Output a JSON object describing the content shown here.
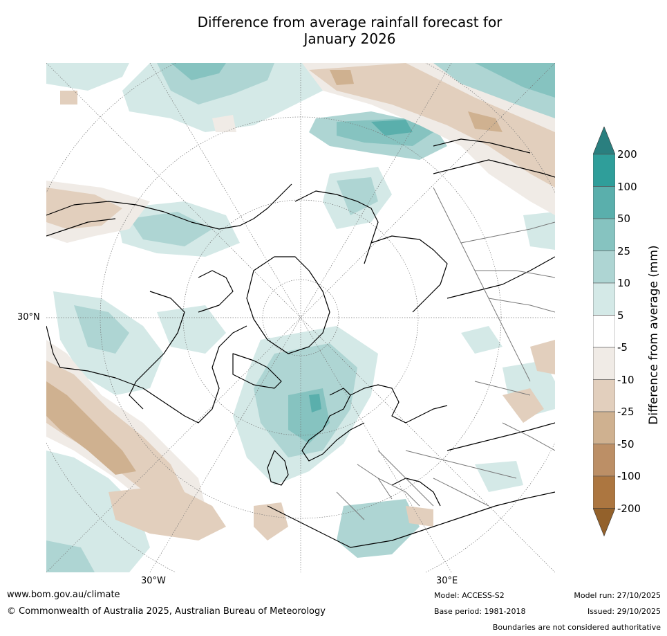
{
  "title_line1": "Difference from average rainfall forecast for",
  "title_line2": "January 2026",
  "axis": {
    "lat_30": "30°N",
    "lon_30w": "30°W",
    "lon_30e": "30°E"
  },
  "colorbar": {
    "title": "Difference from average (mm)",
    "ticks": [
      "200",
      "100",
      "50",
      "25",
      "10",
      "5",
      "-5",
      "-10",
      "-25",
      "-50",
      "-100",
      "-200"
    ],
    "colors": [
      "#2a7f7f",
      "#2f9e9a",
      "#5aafac",
      "#86c3c0",
      "#aed5d3",
      "#d4e9e7",
      "#ffffff",
      "#f0ebe6",
      "#e2cfbd",
      "#cfb190",
      "#bc8f66",
      "#ac7640",
      "#93612b"
    ]
  },
  "footer": {
    "url": "www.bom.gov.au/climate",
    "copyright": "© Commonwealth of Australia 2025, Australian Bureau of Meteorology",
    "model": "Model: ACCESS-S2",
    "base_period": "Base period: 1981-2018",
    "model_run": "Model run: 27/10/2025",
    "issued": "Issued: 29/10/2025",
    "disclaimer": "Boundaries are not considered authoritative"
  }
}
